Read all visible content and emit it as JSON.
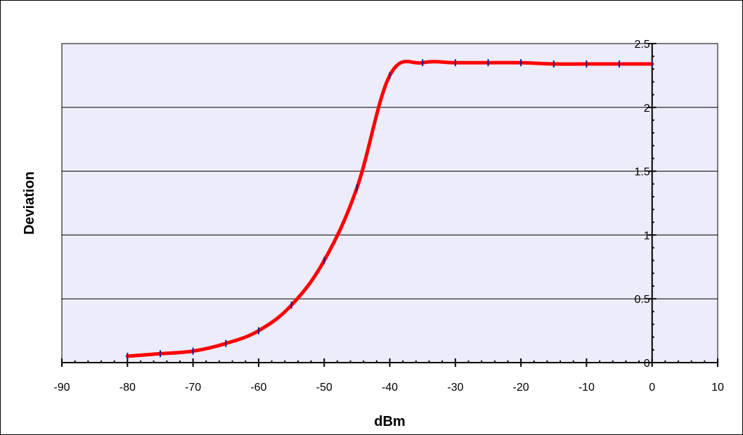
{
  "chart_data": {
    "type": "line",
    "title": "",
    "xlabel": "dBm",
    "ylabel": "Deviation",
    "xlim": [
      -90,
      10
    ],
    "ylim": [
      0,
      2.5
    ],
    "x_ticks": [
      -90,
      -80,
      -70,
      -60,
      -50,
      -40,
      -30,
      -20,
      -10,
      0,
      10
    ],
    "y_ticks": [
      0,
      0.5,
      1,
      1.5,
      2,
      2.5
    ],
    "x_tick_labels": [
      "-90",
      "-80",
      "-70",
      "-60",
      "-50",
      "-40",
      "-30",
      "-20",
      "-10",
      "0",
      "10"
    ],
    "y_tick_labels": [
      "0",
      "0.5",
      "1",
      "1.5",
      "2",
      "2.5"
    ],
    "grid": "horizontal",
    "legend": "none",
    "colors": {
      "plot_background": "#ececfa",
      "line": "#ff0000",
      "marker": "#1a1a8c",
      "grid": "#000000"
    },
    "series": [
      {
        "x": [
          -80,
          -75,
          -70,
          -65,
          -60,
          -55,
          -50,
          -45,
          -40,
          -35,
          -30,
          -25,
          -20,
          -15,
          -10,
          -5,
          0
        ],
        "y": [
          0.05,
          0.07,
          0.09,
          0.15,
          0.25,
          0.45,
          0.8,
          1.37,
          2.25,
          2.35,
          2.35,
          2.35,
          2.35,
          2.34,
          2.34,
          2.34,
          2.34
        ]
      }
    ]
  }
}
